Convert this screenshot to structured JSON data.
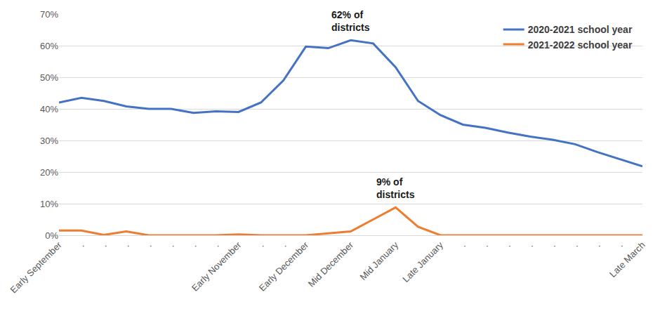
{
  "chart_data": {
    "type": "line",
    "categories": [
      "Early September",
      ".",
      ".",
      ".",
      ".",
      ".",
      ".",
      ".",
      "Early November",
      ".",
      ".",
      "Early December",
      null,
      "Mid December",
      null,
      "Mid January",
      null,
      "Late January",
      ".",
      ".",
      ".",
      ".",
      ".",
      ".",
      ".",
      ".",
      "Late March"
    ],
    "series": [
      {
        "name": "2020-2021 school year",
        "color": "#4472c4",
        "values": [
          42,
          43.5,
          42.5,
          40.8,
          40,
          40,
          38.7,
          39.2,
          39,
          42,
          49,
          59.7,
          59.2,
          61.7,
          60.7,
          53.2,
          42.5,
          38,
          35,
          34,
          32.5,
          31.2,
          30.2,
          28.8,
          26.3,
          24,
          21.8
        ]
      },
      {
        "name": "2021-2022 school year",
        "color": "#ed7d31",
        "values": [
          1.5,
          1.5,
          0.1,
          1.2,
          0,
          0,
          0,
          0,
          0.3,
          0,
          0,
          0,
          0.6,
          1.2,
          5,
          8.8,
          2.7,
          0,
          0,
          0,
          0,
          0,
          0,
          0,
          0,
          0,
          0
        ]
      }
    ],
    "annotations": [
      {
        "text": [
          "62% of",
          "districts"
        ],
        "series": "2020-2021 school year",
        "category": "Mid December"
      },
      {
        "text": [
          "9% of",
          "districts"
        ],
        "series": "2021-2022 school year",
        "category": "Mid January"
      }
    ],
    "ylim": [
      0,
      70
    ],
    "yticks": [
      {
        "value": 0,
        "label": "0%"
      },
      {
        "value": 10,
        "label": "10%"
      },
      {
        "value": 20,
        "label": "20%"
      },
      {
        "value": 30,
        "label": "30%"
      },
      {
        "value": 40,
        "label": "40%"
      },
      {
        "value": 50,
        "label": "50%"
      },
      {
        "value": 60,
        "label": "60%"
      },
      {
        "value": 70,
        "label": "70%"
      }
    ],
    "grid": true,
    "legend": "top right"
  }
}
